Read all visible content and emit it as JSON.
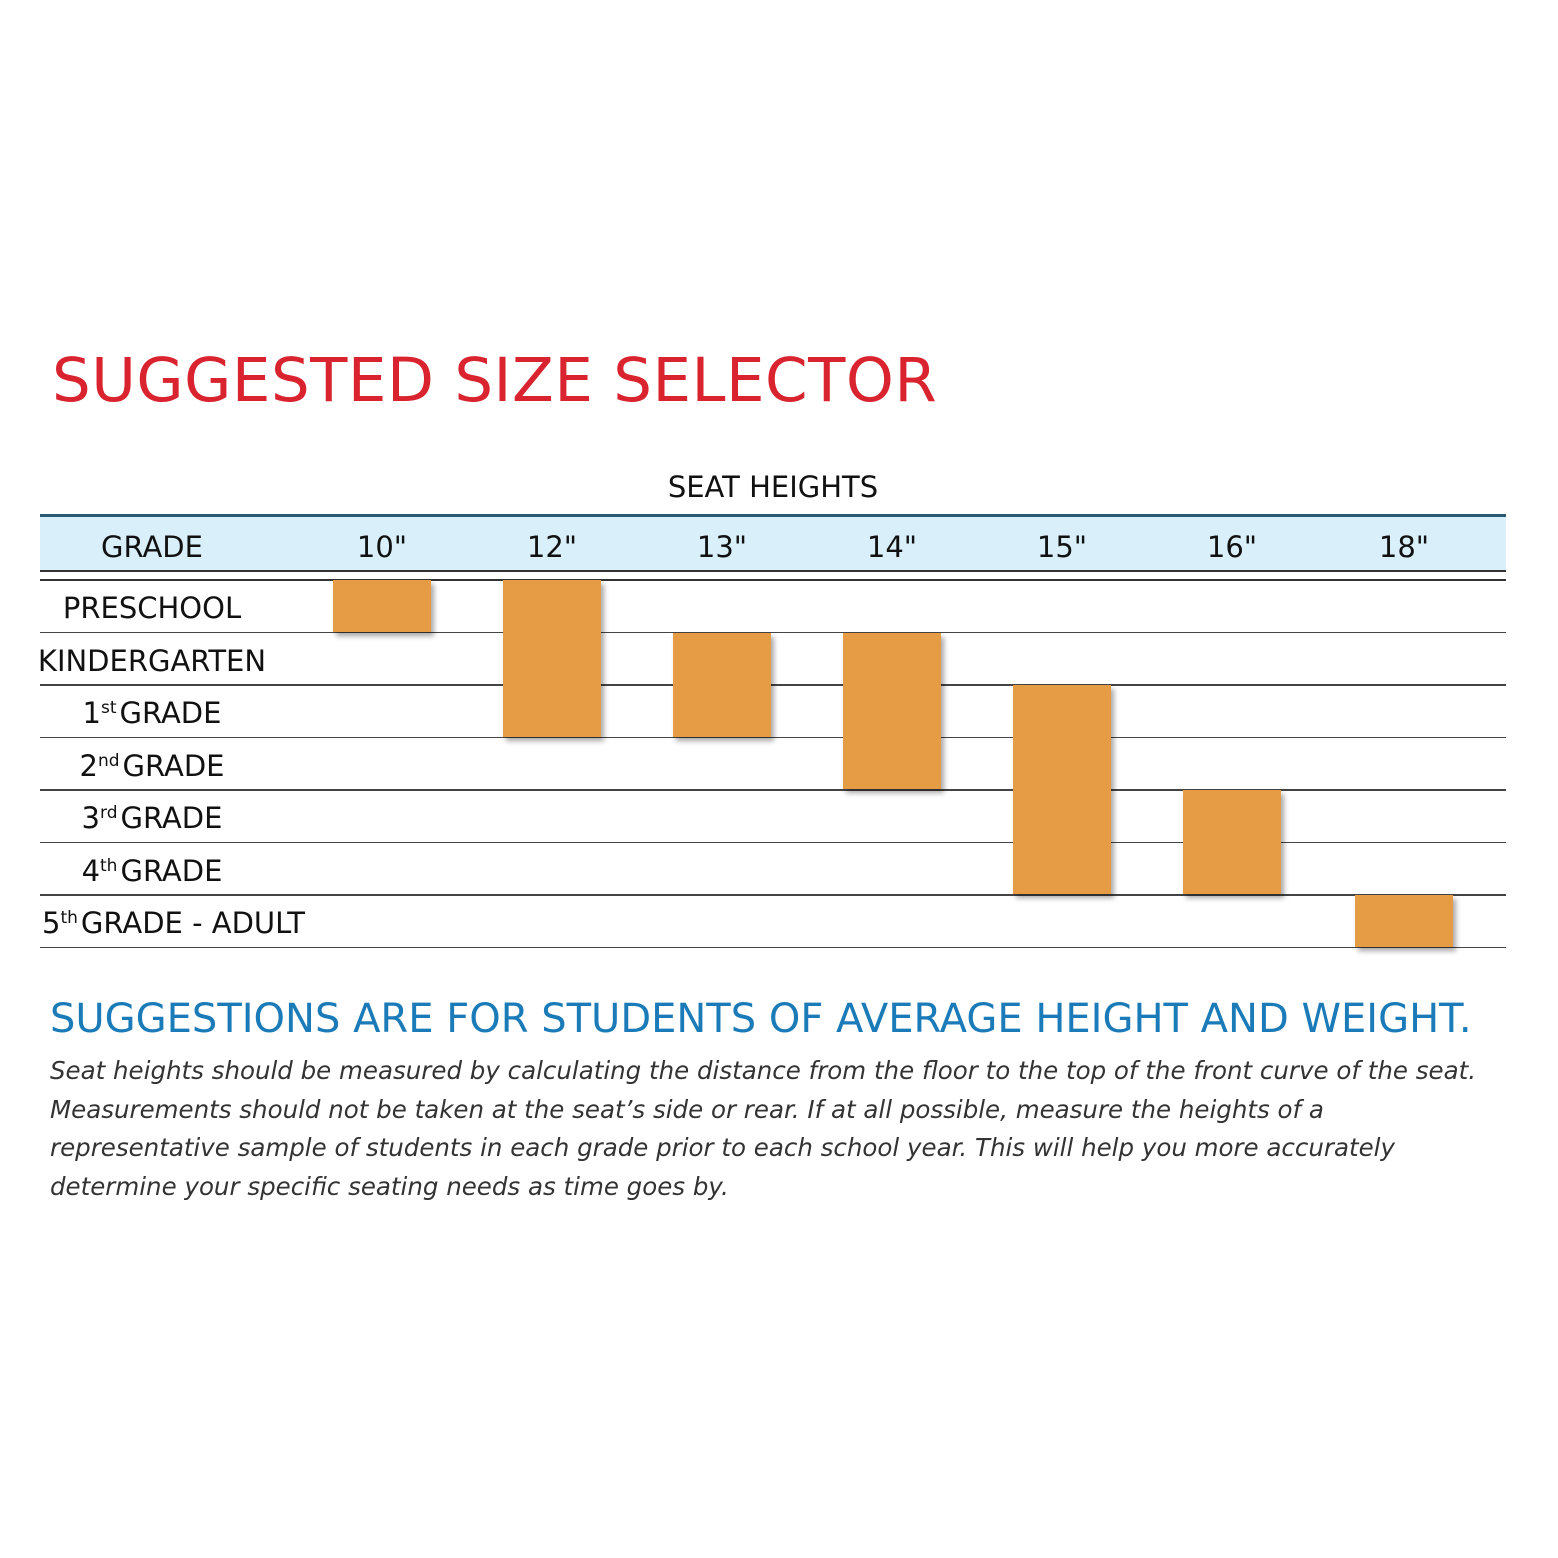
{
  "title": "SUGGESTED SIZE SELECTOR",
  "colors": {
    "title": "#d9232e",
    "header_band": "#d9f0fb",
    "bar": "#e69c45",
    "note_heading": "#1a7bb8"
  },
  "table": {
    "super_header": "SEAT HEIGHTS",
    "grade_header": "GRADE",
    "rows": [
      {
        "main": "PRESCHOOL"
      },
      {
        "main": "KINDERGARTEN"
      },
      {
        "ord": "1",
        "sup": "st",
        "rest": "GRADE"
      },
      {
        "ord": "2",
        "sup": "nd",
        "rest": "GRADE"
      },
      {
        "ord": "3",
        "sup": "rd",
        "rest": "GRADE"
      },
      {
        "ord": "4",
        "sup": "th",
        "rest": "GRADE"
      },
      {
        "ord": "5",
        "sup": "th",
        "rest": "GRADE - ADULT"
      }
    ]
  },
  "chart_data": {
    "type": "table",
    "title": "SUGGESTED SIZE SELECTOR",
    "column_group": "SEAT HEIGHTS",
    "row_header": "GRADE",
    "columns": [
      "10\"",
      "12\"",
      "13\"",
      "14\"",
      "15\"",
      "16\"",
      "18\""
    ],
    "rows": [
      "PRESCHOOL",
      "KINDERGARTEN",
      "1st GRADE",
      "2nd GRADE",
      "3rd GRADE",
      "4th GRADE",
      "5th GRADE - ADULT"
    ],
    "ranges": [
      {
        "seat_height": "10\"",
        "from_row": 0,
        "to_row": 0
      },
      {
        "seat_height": "12\"",
        "from_row": 0,
        "to_row": 2
      },
      {
        "seat_height": "13\"",
        "from_row": 1,
        "to_row": 2
      },
      {
        "seat_height": "14\"",
        "from_row": 1,
        "to_row": 3
      },
      {
        "seat_height": "15\"",
        "from_row": 2,
        "to_row": 5
      },
      {
        "seat_height": "16\"",
        "from_row": 4,
        "to_row": 5
      },
      {
        "seat_height": "18\"",
        "from_row": 6,
        "to_row": 6
      }
    ]
  },
  "note": {
    "heading": "SUGGESTIONS ARE FOR STUDENTS OF AVERAGE HEIGHT AND WEIGHT.",
    "body": "Seat heights should be measured by calculating the distance from the floor to the top of the front curve of the seat. Measurements should not be taken at the seat’s side or rear.  If at all possible, measure the heights of a representative sample of students in each grade prior to each school year.  This will help you more accurately determine your specific seating needs as time goes by."
  }
}
